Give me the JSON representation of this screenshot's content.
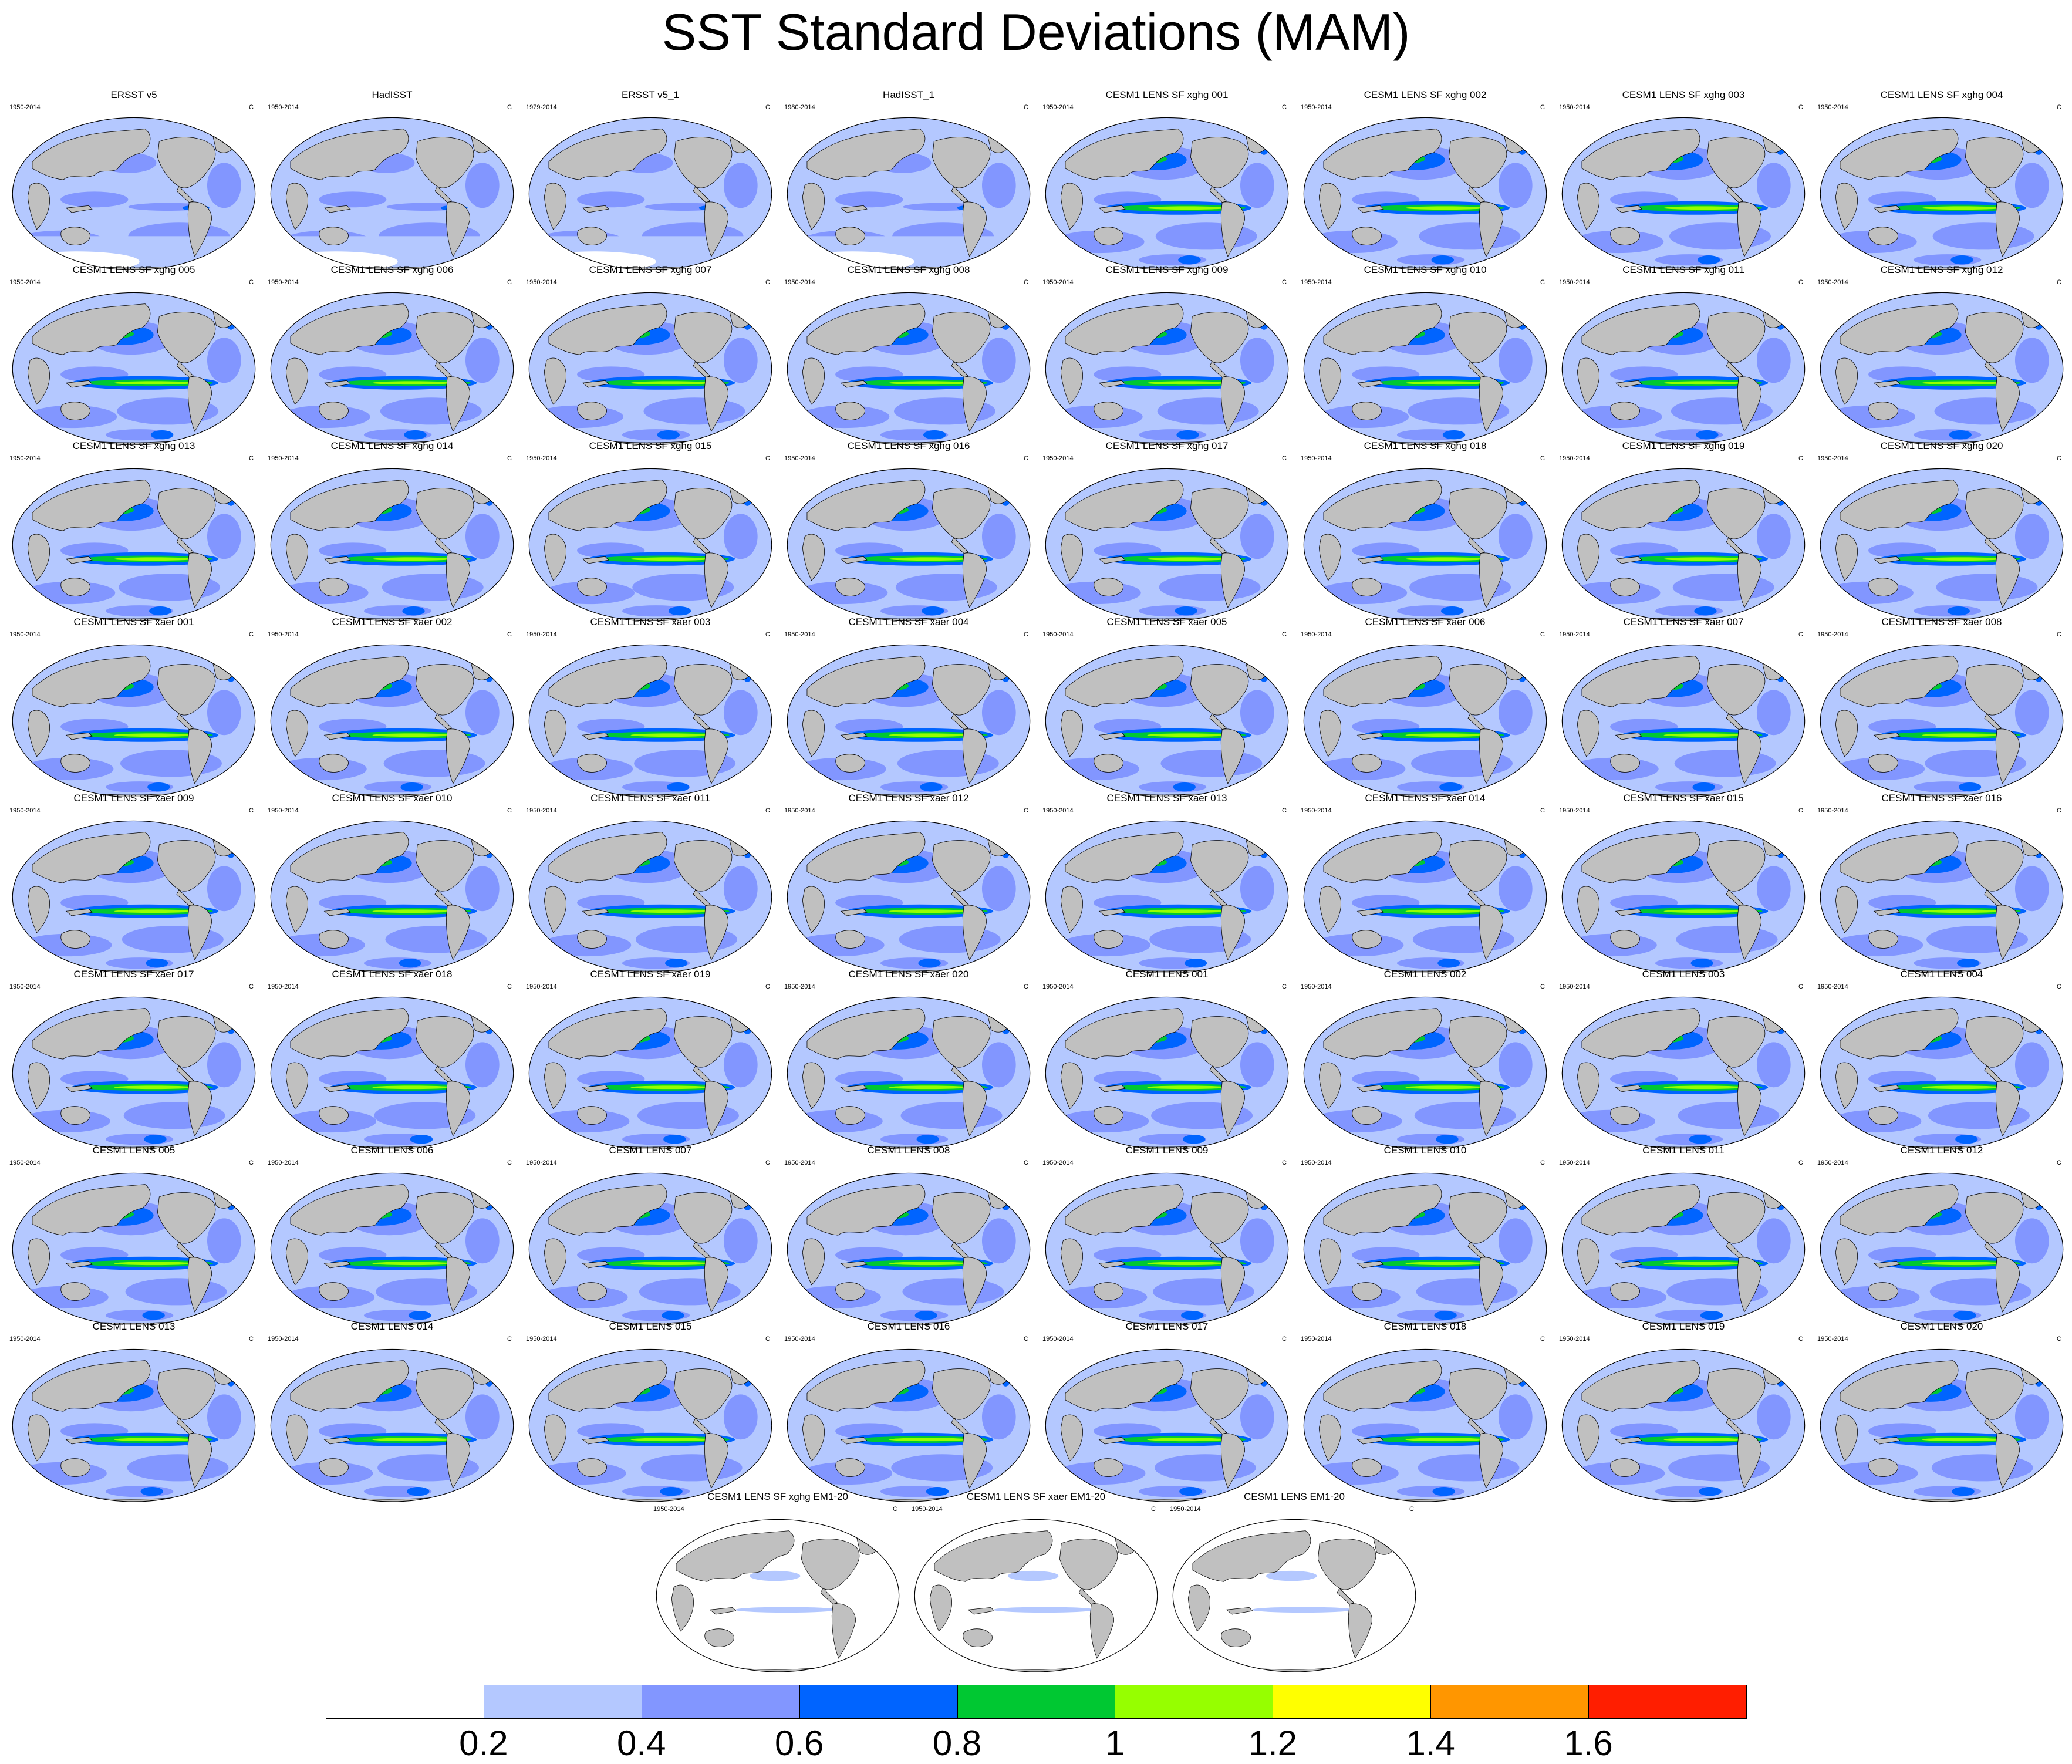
{
  "title": "SST Standard Deviations (MAM)",
  "units": "C",
  "panels": [
    {
      "title": "ERSST v5",
      "years": "1950-2014",
      "style": "obs"
    },
    {
      "title": "HadISST",
      "years": "1950-2014",
      "style": "obs"
    },
    {
      "title": "ERSST v5_1",
      "years": "1979-2014",
      "style": "obs"
    },
    {
      "title": "HadISST_1",
      "years": "1980-2014",
      "style": "obs"
    },
    {
      "title": "CESM1 LENS SF xghg 001",
      "years": "1950-2014",
      "style": "model"
    },
    {
      "title": "CESM1 LENS SF xghg 002",
      "years": "1950-2014",
      "style": "model"
    },
    {
      "title": "CESM1 LENS SF xghg 003",
      "years": "1950-2014",
      "style": "model"
    },
    {
      "title": "CESM1 LENS SF xghg 004",
      "years": "1950-2014",
      "style": "model"
    },
    {
      "title": "CESM1 LENS SF xghg 005",
      "years": "1950-2014",
      "style": "model"
    },
    {
      "title": "CESM1 LENS SF xghg 006",
      "years": "1950-2014",
      "style": "model"
    },
    {
      "title": "CESM1 LENS SF xghg 007",
      "years": "1950-2014",
      "style": "model"
    },
    {
      "title": "CESM1 LENS SF xghg 008",
      "years": "1950-2014",
      "style": "model"
    },
    {
      "title": "CESM1 LENS SF xghg 009",
      "years": "1950-2014",
      "style": "model"
    },
    {
      "title": "CESM1 LENS SF xghg 010",
      "years": "1950-2014",
      "style": "model"
    },
    {
      "title": "CESM1 LENS SF xghg 011",
      "years": "1950-2014",
      "style": "model"
    },
    {
      "title": "CESM1 LENS SF xghg 012",
      "years": "1950-2014",
      "style": "model"
    },
    {
      "title": "CESM1 LENS SF xghg 013",
      "years": "1950-2014",
      "style": "model"
    },
    {
      "title": "CESM1 LENS SF xghg 014",
      "years": "1950-2014",
      "style": "model"
    },
    {
      "title": "CESM1 LENS SF xghg 015",
      "years": "1950-2014",
      "style": "model"
    },
    {
      "title": "CESM1 LENS SF xghg 016",
      "years": "1950-2014",
      "style": "model"
    },
    {
      "title": "CESM1 LENS SF xghg 017",
      "years": "1950-2014",
      "style": "model"
    },
    {
      "title": "CESM1 LENS SF xghg 018",
      "years": "1950-2014",
      "style": "model"
    },
    {
      "title": "CESM1 LENS SF xghg 019",
      "years": "1950-2014",
      "style": "model"
    },
    {
      "title": "CESM1 LENS SF xghg 020",
      "years": "1950-2014",
      "style": "model"
    },
    {
      "title": "CESM1 LENS SF xaer 001",
      "years": "1950-2014",
      "style": "model"
    },
    {
      "title": "CESM1 LENS SF xaer 002",
      "years": "1950-2014",
      "style": "model"
    },
    {
      "title": "CESM1 LENS SF xaer 003",
      "years": "1950-2014",
      "style": "model"
    },
    {
      "title": "CESM1 LENS SF xaer 004",
      "years": "1950-2014",
      "style": "model"
    },
    {
      "title": "CESM1 LENS SF xaer 005",
      "years": "1950-2014",
      "style": "model"
    },
    {
      "title": "CESM1 LENS SF xaer 006",
      "years": "1950-2014",
      "style": "model"
    },
    {
      "title": "CESM1 LENS SF xaer 007",
      "years": "1950-2014",
      "style": "model"
    },
    {
      "title": "CESM1 LENS SF xaer 008",
      "years": "1950-2014",
      "style": "model"
    },
    {
      "title": "CESM1 LENS SF xaer 009",
      "years": "1950-2014",
      "style": "model"
    },
    {
      "title": "CESM1 LENS SF xaer 010",
      "years": "1950-2014",
      "style": "model"
    },
    {
      "title": "CESM1 LENS SF xaer 011",
      "years": "1950-2014",
      "style": "model"
    },
    {
      "title": "CESM1 LENS SF xaer 012",
      "years": "1950-2014",
      "style": "model"
    },
    {
      "title": "CESM1 LENS SF xaer 013",
      "years": "1950-2014",
      "style": "model"
    },
    {
      "title": "CESM1 LENS SF xaer 014",
      "years": "1950-2014",
      "style": "model"
    },
    {
      "title": "CESM1 LENS SF xaer 015",
      "years": "1950-2014",
      "style": "model"
    },
    {
      "title": "CESM1 LENS SF xaer 016",
      "years": "1950-2014",
      "style": "model"
    },
    {
      "title": "CESM1 LENS SF xaer 017",
      "years": "1950-2014",
      "style": "model"
    },
    {
      "title": "CESM1 LENS SF xaer 018",
      "years": "1950-2014",
      "style": "model"
    },
    {
      "title": "CESM1 LENS SF xaer 019",
      "years": "1950-2014",
      "style": "model"
    },
    {
      "title": "CESM1 LENS SF xaer 020",
      "years": "1950-2014",
      "style": "model"
    },
    {
      "title": "CESM1 LENS 001",
      "years": "1950-2014",
      "style": "model"
    },
    {
      "title": "CESM1 LENS 002",
      "years": "1950-2014",
      "style": "model"
    },
    {
      "title": "CESM1 LENS 003",
      "years": "1950-2014",
      "style": "model"
    },
    {
      "title": "CESM1 LENS 004",
      "years": "1950-2014",
      "style": "model"
    },
    {
      "title": "CESM1 LENS 005",
      "years": "1950-2014",
      "style": "model"
    },
    {
      "title": "CESM1 LENS 006",
      "years": "1950-2014",
      "style": "model"
    },
    {
      "title": "CESM1 LENS 007",
      "years": "1950-2014",
      "style": "model"
    },
    {
      "title": "CESM1 LENS 008",
      "years": "1950-2014",
      "style": "model"
    },
    {
      "title": "CESM1 LENS 009",
      "years": "1950-2014",
      "style": "model"
    },
    {
      "title": "CESM1 LENS 010",
      "years": "1950-2014",
      "style": "model"
    },
    {
      "title": "CESM1 LENS 011",
      "years": "1950-2014",
      "style": "model"
    },
    {
      "title": "CESM1 LENS 012",
      "years": "1950-2014",
      "style": "model"
    },
    {
      "title": "CESM1 LENS 013",
      "years": "1950-2014",
      "style": "model"
    },
    {
      "title": "CESM1 LENS 014",
      "years": "1950-2014",
      "style": "model"
    },
    {
      "title": "CESM1 LENS 015",
      "years": "1950-2014",
      "style": "model"
    },
    {
      "title": "CESM1 LENS 016",
      "years": "1950-2014",
      "style": "model"
    },
    {
      "title": "CESM1 LENS 017",
      "years": "1950-2014",
      "style": "model"
    },
    {
      "title": "CESM1 LENS 018",
      "years": "1950-2014",
      "style": "model"
    },
    {
      "title": "CESM1 LENS 019",
      "years": "1950-2014",
      "style": "model"
    },
    {
      "title": "CESM1 LENS 020",
      "years": "1950-2014",
      "style": "model"
    },
    {
      "title": "CESM1 LENS SF xghg EM1-20",
      "years": "1950-2014",
      "style": "mean"
    },
    {
      "title": "CESM1 LENS SF xaer EM1-20",
      "years": "1950-2014",
      "style": "mean"
    },
    {
      "title": "CESM1 LENS EM1-20",
      "years": "1950-2014",
      "style": "mean"
    }
  ],
  "chart_data": {
    "type": "heatmap",
    "title": "SST Standard Deviations (MAM)",
    "units": "C",
    "levels": [
      0.2,
      0.4,
      0.6,
      0.8,
      1,
      1.2,
      1.4,
      1.6
    ],
    "level_labels": [
      "0.2",
      "0.4",
      "0.6",
      "0.8",
      "1",
      "1.2",
      "1.4",
      "1.6"
    ],
    "colors": [
      "#ffffff",
      "#b4c8ff",
      "#8296ff",
      "#0064ff",
      "#00c832",
      "#96ff00",
      "#ffff00",
      "#ff9600",
      "#ff1e00"
    ],
    "land_color": "#c0c0c0"
  }
}
